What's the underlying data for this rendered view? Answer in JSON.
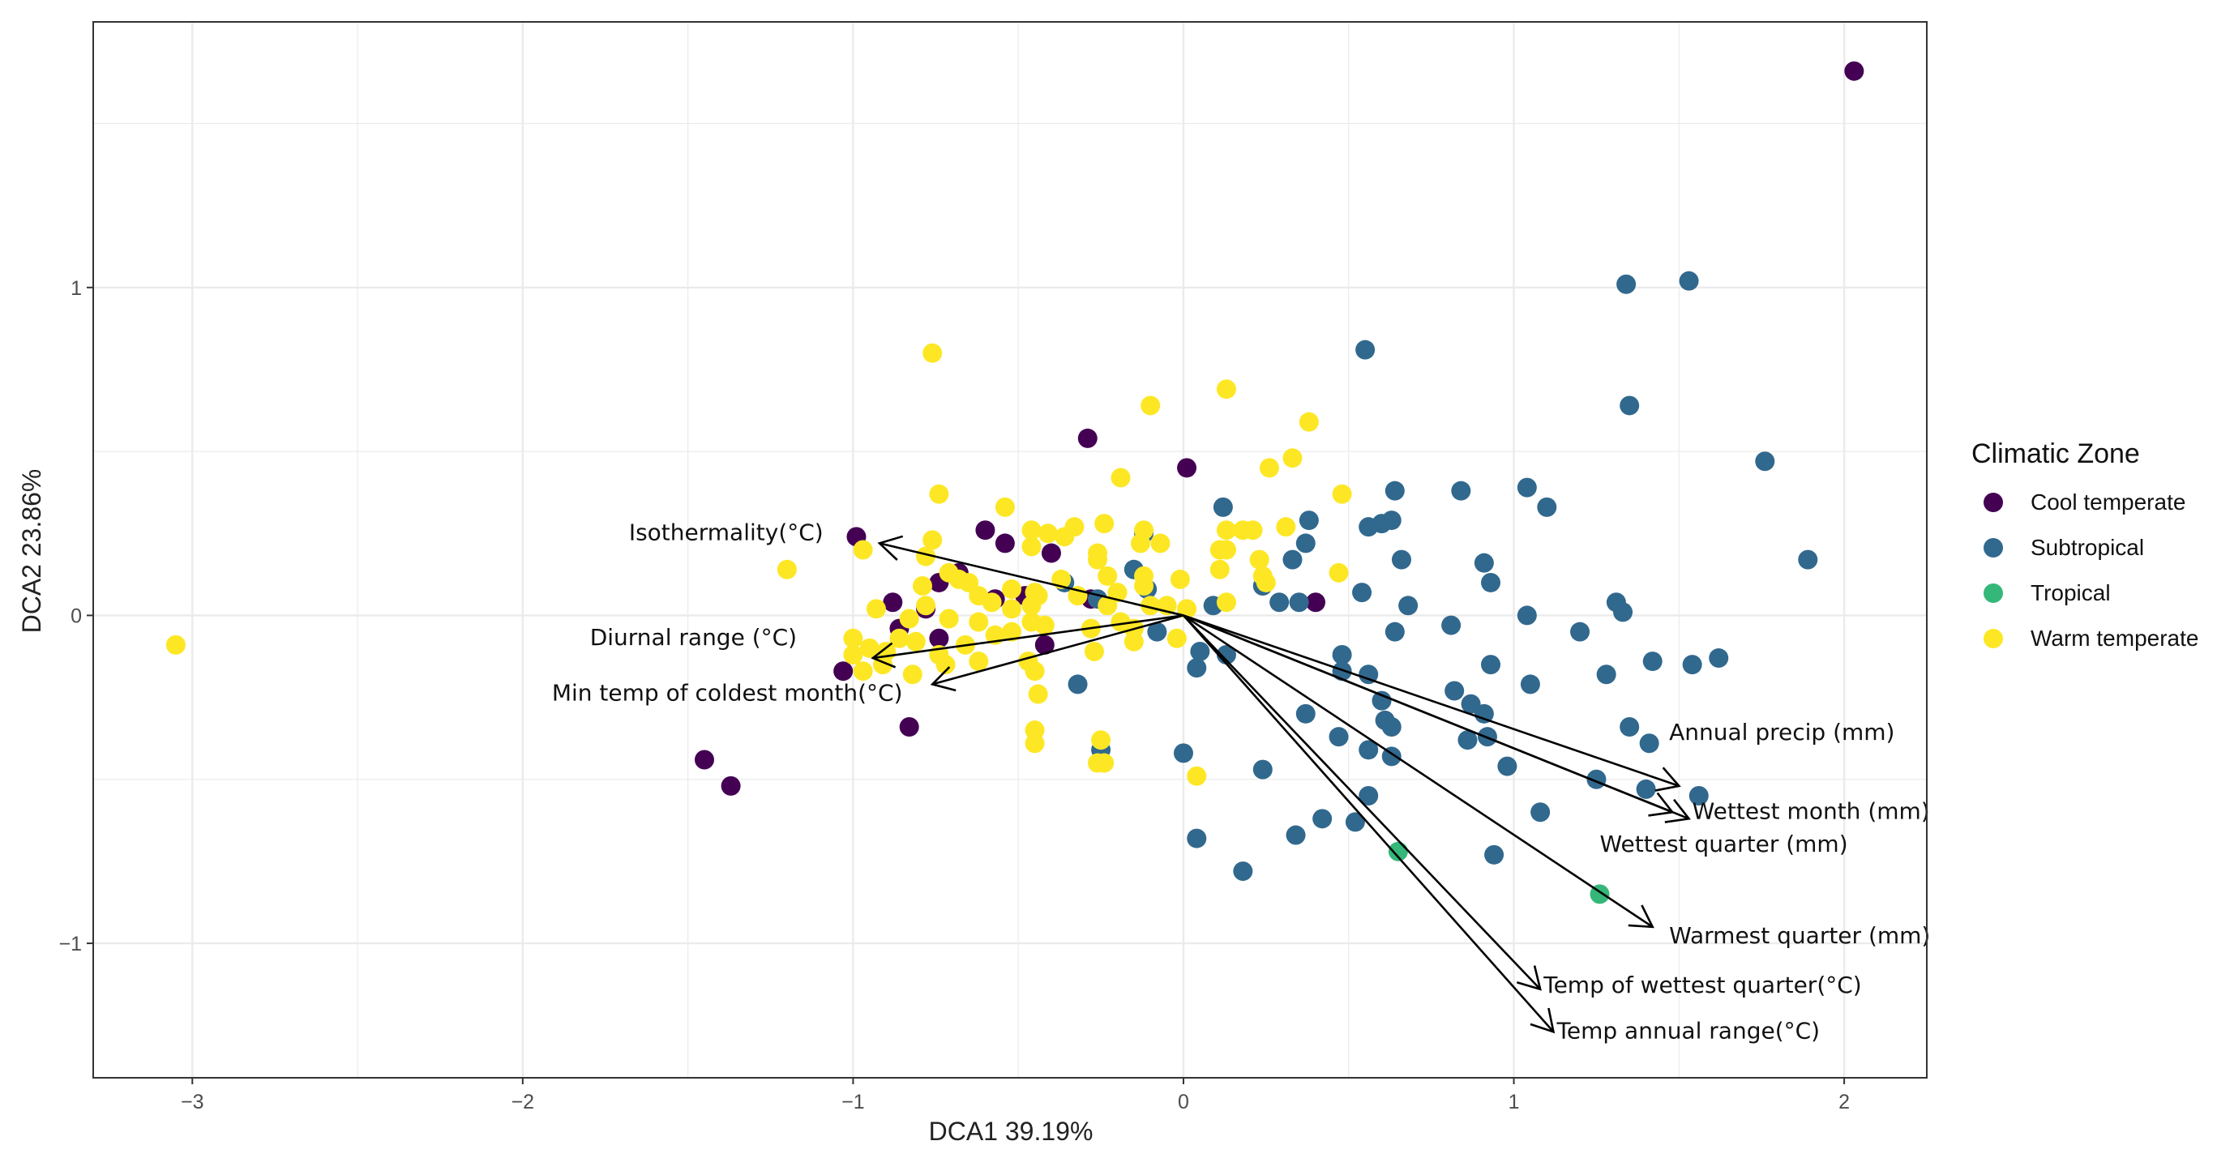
{
  "colors": {
    "Cool temperate": "#440154",
    "Subtropical": "#31688e",
    "Tropical": "#35b779",
    "Warm temperate": "#fde725",
    "grid": "#ebebeb",
    "panel_border": "#333333",
    "vector": "#000000"
  },
  "chart_data": {
    "type": "scatter",
    "title": "",
    "xlabel": "DCA1 39.19%",
    "ylabel": "DCA2 23.86%",
    "xlim": [
      -3.3,
      2.25
    ],
    "ylim": [
      -1.41,
      1.81
    ],
    "x_ticks": [
      -3,
      -2,
      -1,
      0,
      1,
      2
    ],
    "x_tick_labels": [
      "−3",
      "−2",
      "−1",
      "0",
      "1",
      "2"
    ],
    "y_ticks": [
      -1,
      0,
      1
    ],
    "y_tick_labels": [
      "−1",
      "0",
      "1"
    ],
    "grid": true,
    "legend": {
      "title": "Climatic Zone",
      "position": "right",
      "entries": [
        "Cool temperate",
        "Subtropical",
        "Tropical",
        "Warm temperate"
      ]
    },
    "series": [
      {
        "name": "Cool temperate",
        "points": [
          [
            2.03,
            1.66
          ],
          [
            -0.99,
            0.24
          ],
          [
            -0.29,
            0.54
          ],
          [
            0.01,
            0.45
          ],
          [
            -0.6,
            0.26
          ],
          [
            -0.54,
            0.22
          ],
          [
            -0.4,
            0.19
          ],
          [
            -0.68,
            0.13
          ],
          [
            -0.74,
            0.1
          ],
          [
            -0.57,
            0.05
          ],
          [
            -0.48,
            0.06
          ],
          [
            -0.28,
            0.05
          ],
          [
            -0.88,
            0.04
          ],
          [
            -0.78,
            0.02
          ],
          [
            -0.86,
            -0.04
          ],
          [
            -0.74,
            -0.07
          ],
          [
            -0.42,
            -0.09
          ],
          [
            -1.03,
            -0.17
          ],
          [
            -0.83,
            -0.34
          ],
          [
            -1.45,
            -0.44
          ],
          [
            -1.37,
            -0.52
          ],
          [
            0.4,
            0.04
          ]
        ]
      },
      {
        "name": "Subtropical",
        "points": [
          [
            1.34,
            1.01
          ],
          [
            1.53,
            1.02
          ],
          [
            0.55,
            0.81
          ],
          [
            1.35,
            0.64
          ],
          [
            1.76,
            0.47
          ],
          [
            1.89,
            0.17
          ],
          [
            -0.12,
            0.25
          ],
          [
            0.12,
            0.33
          ],
          [
            0.38,
            0.29
          ],
          [
            0.37,
            0.22
          ],
          [
            0.33,
            0.17
          ],
          [
            0.84,
            0.38
          ],
          [
            1.04,
            0.39
          ],
          [
            1.1,
            0.33
          ],
          [
            0.64,
            0.38
          ],
          [
            0.63,
            0.29
          ],
          [
            0.56,
            0.27
          ],
          [
            0.6,
            0.28
          ],
          [
            0.66,
            0.17
          ],
          [
            0.91,
            0.16
          ],
          [
            0.93,
            0.1
          ],
          [
            1.31,
            0.04
          ],
          [
            1.33,
            0.01
          ],
          [
            1.04,
            0.0
          ],
          [
            0.24,
            0.09
          ],
          [
            0.29,
            0.04
          ],
          [
            0.35,
            0.04
          ],
          [
            0.54,
            0.07
          ],
          [
            0.68,
            0.03
          ],
          [
            0.81,
            -0.03
          ],
          [
            1.2,
            -0.05
          ],
          [
            0.64,
            -0.05
          ],
          [
            -0.36,
            0.1
          ],
          [
            -0.15,
            0.14
          ],
          [
            -0.11,
            0.08
          ],
          [
            -0.08,
            -0.05
          ],
          [
            0.05,
            -0.11
          ],
          [
            0.04,
            -0.16
          ],
          [
            0.13,
            -0.12
          ],
          [
            0.09,
            0.03
          ],
          [
            -0.26,
            0.05
          ],
          [
            -0.32,
            -0.21
          ],
          [
            0.48,
            -0.12
          ],
          [
            0.48,
            -0.17
          ],
          [
            0.56,
            -0.18
          ],
          [
            0.6,
            -0.26
          ],
          [
            0.61,
            -0.32
          ],
          [
            0.63,
            -0.34
          ],
          [
            0.82,
            -0.23
          ],
          [
            0.87,
            -0.27
          ],
          [
            0.91,
            -0.3
          ],
          [
            0.93,
            -0.15
          ],
          [
            1.05,
            -0.21
          ],
          [
            1.28,
            -0.18
          ],
          [
            1.42,
            -0.14
          ],
          [
            1.54,
            -0.15
          ],
          [
            1.62,
            -0.13
          ],
          [
            0.37,
            -0.3
          ],
          [
            0.47,
            -0.37
          ],
          [
            0.56,
            -0.41
          ],
          [
            0.63,
            -0.43
          ],
          [
            0.86,
            -0.38
          ],
          [
            0.92,
            -0.37
          ],
          [
            0.98,
            -0.46
          ],
          [
            1.25,
            -0.5
          ],
          [
            1.35,
            -0.34
          ],
          [
            1.41,
            -0.39
          ],
          [
            1.4,
            -0.53
          ],
          [
            1.56,
            -0.55
          ],
          [
            1.08,
            -0.6
          ],
          [
            0.56,
            -0.55
          ],
          [
            0.42,
            -0.62
          ],
          [
            0.52,
            -0.63
          ],
          [
            0.34,
            -0.67
          ],
          [
            0.04,
            -0.68
          ],
          [
            0.18,
            -0.78
          ],
          [
            0.94,
            -0.73
          ],
          [
            0.24,
            -0.47
          ],
          [
            -0.25,
            -0.41
          ],
          [
            0.0,
            -0.42
          ]
        ]
      },
      {
        "name": "Tropical",
        "points": [
          [
            0.65,
            -0.72
          ],
          [
            1.26,
            -0.85
          ]
        ]
      },
      {
        "name": "Warm temperate",
        "points": [
          [
            -3.05,
            -0.09
          ],
          [
            -0.76,
            0.8
          ],
          [
            -0.1,
            0.64
          ],
          [
            0.13,
            0.69
          ],
          [
            0.38,
            0.59
          ],
          [
            0.26,
            0.45
          ],
          [
            0.33,
            0.48
          ],
          [
            0.48,
            0.37
          ],
          [
            -0.19,
            0.42
          ],
          [
            -0.74,
            0.37
          ],
          [
            -0.54,
            0.33
          ],
          [
            -0.33,
            0.27
          ],
          [
            -0.24,
            0.28
          ],
          [
            -0.12,
            0.26
          ],
          [
            -0.46,
            0.26
          ],
          [
            -0.41,
            0.25
          ],
          [
            -0.36,
            0.24
          ],
          [
            0.13,
            0.26
          ],
          [
            0.21,
            0.26
          ],
          [
            0.18,
            0.26
          ],
          [
            0.31,
            0.27
          ],
          [
            -0.76,
            0.23
          ],
          [
            -0.97,
            0.2
          ],
          [
            -0.78,
            0.18
          ],
          [
            -0.46,
            0.21
          ],
          [
            -0.26,
            0.19
          ],
          [
            -0.26,
            0.17
          ],
          [
            -0.13,
            0.22
          ],
          [
            -0.07,
            0.22
          ],
          [
            0.11,
            0.2
          ],
          [
            0.13,
            0.2
          ],
          [
            0.23,
            0.17
          ],
          [
            -1.2,
            0.14
          ],
          [
            -0.71,
            0.13
          ],
          [
            -0.68,
            0.11
          ],
          [
            -0.79,
            0.09
          ],
          [
            -0.65,
            0.1
          ],
          [
            -0.62,
            0.06
          ],
          [
            -0.52,
            0.08
          ],
          [
            -0.45,
            0.07
          ],
          [
            -0.37,
            0.11
          ],
          [
            -0.23,
            0.12
          ],
          [
            -0.2,
            0.07
          ],
          [
            -0.12,
            0.12
          ],
          [
            -0.12,
            0.09
          ],
          [
            -0.01,
            0.11
          ],
          [
            0.11,
            0.14
          ],
          [
            0.25,
            0.1
          ],
          [
            0.24,
            0.12
          ],
          [
            0.47,
            0.13
          ],
          [
            -0.93,
            0.02
          ],
          [
            -0.83,
            -0.01
          ],
          [
            -0.78,
            0.03
          ],
          [
            -0.71,
            -0.01
          ],
          [
            -0.62,
            -0.02
          ],
          [
            -0.58,
            0.04
          ],
          [
            -0.52,
            0.02
          ],
          [
            -0.46,
            0.03
          ],
          [
            -0.44,
            0.06
          ],
          [
            -0.32,
            0.06
          ],
          [
            -0.23,
            0.03
          ],
          [
            -0.1,
            0.03
          ],
          [
            -0.05,
            0.03
          ],
          [
            0.01,
            0.02
          ],
          [
            0.13,
            0.04
          ],
          [
            -1.0,
            -0.07
          ],
          [
            -0.95,
            -0.1
          ],
          [
            -0.9,
            -0.11
          ],
          [
            -0.86,
            -0.07
          ],
          [
            -0.81,
            -0.08
          ],
          [
            -0.74,
            -0.12
          ],
          [
            -0.66,
            -0.09
          ],
          [
            -0.57,
            -0.06
          ],
          [
            -0.52,
            -0.05
          ],
          [
            -0.46,
            -0.02
          ],
          [
            -0.42,
            -0.03
          ],
          [
            -0.28,
            -0.04
          ],
          [
            -0.19,
            -0.02
          ],
          [
            -0.15,
            -0.04
          ],
          [
            -0.02,
            -0.07
          ],
          [
            -1.0,
            -0.12
          ],
          [
            -0.97,
            -0.17
          ],
          [
            -0.91,
            -0.15
          ],
          [
            -0.82,
            -0.18
          ],
          [
            -0.72,
            -0.15
          ],
          [
            -0.62,
            -0.14
          ],
          [
            -0.47,
            -0.14
          ],
          [
            -0.45,
            -0.17
          ],
          [
            -0.27,
            -0.11
          ],
          [
            -0.15,
            -0.08
          ],
          [
            -0.44,
            -0.24
          ],
          [
            -0.45,
            -0.35
          ],
          [
            -0.45,
            -0.39
          ],
          [
            -0.25,
            -0.38
          ],
          [
            -0.26,
            -0.45
          ],
          [
            -0.24,
            -0.45
          ],
          [
            0.04,
            -0.49
          ]
        ]
      }
    ],
    "vectors": [
      {
        "label": "Isothermality(°C)",
        "end": [
          -0.92,
          0.22
        ]
      },
      {
        "label": "Diurnal range (°C)",
        "end": [
          -0.94,
          -0.13
        ]
      },
      {
        "label": "Min temp of coldest month(°C)",
        "end": [
          -0.76,
          -0.21
        ]
      },
      {
        "label": "Annual precip (mm)",
        "end": [
          1.5,
          -0.52
        ]
      },
      {
        "label": "Wettest month (mm)",
        "end": [
          1.53,
          -0.62
        ]
      },
      {
        "label": "Wettest quarter (mm)",
        "end": [
          1.48,
          -0.6
        ]
      },
      {
        "label": "Warmest quarter (mm)",
        "end": [
          1.42,
          -0.95
        ]
      },
      {
        "label": "Temp of wettest quarter(°C)",
        "end": [
          1.08,
          -1.14
        ]
      },
      {
        "label": "Temp annual range(°C)",
        "end": [
          1.12,
          -1.27
        ]
      }
    ],
    "vector_labels": [
      {
        "label": "Isothermality(°C)",
        "x": -1.09,
        "y": 0.23,
        "anchor": "end"
      },
      {
        "label": "Diurnal range (°C)",
        "x": -1.17,
        "y": -0.09,
        "anchor": "end"
      },
      {
        "label": "Min temp of coldest month(°C)",
        "x": -0.85,
        "y": -0.26,
        "anchor": "end"
      },
      {
        "label": "Annual precip (mm)",
        "x": 1.47,
        "y": -0.38,
        "anchor": "start"
      },
      {
        "label": "Wettest month (mm)",
        "x": 1.54,
        "y": -0.62,
        "anchor": "start"
      },
      {
        "label": "Wettest quarter (mm)",
        "x": 1.26,
        "y": -0.72,
        "anchor": "start"
      },
      {
        "label": "Warmest quarter (mm)",
        "x": 1.47,
        "y": -1.0,
        "anchor": "start"
      },
      {
        "label": "Temp of wettest quarter(°C)",
        "x": 1.09,
        "y": -1.15,
        "anchor": "start"
      },
      {
        "label": "Temp annual range(°C)",
        "x": 1.13,
        "y": -1.29,
        "anchor": "start"
      }
    ]
  }
}
